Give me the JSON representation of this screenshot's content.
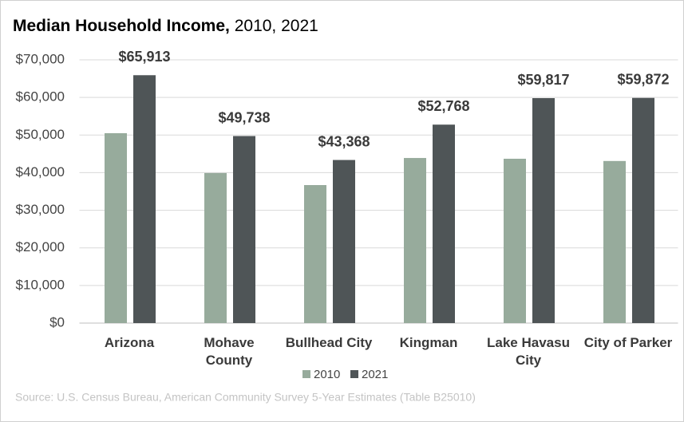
{
  "chart_data": {
    "type": "bar",
    "title": "Median Household Income,",
    "title_years": "2010, 2021",
    "categories": [
      "Arizona",
      "Mohave County",
      "Bullhead City",
      "Kingman",
      "Lake Havasu City",
      "City of Parker"
    ],
    "series": [
      {
        "name": "2010",
        "color": "#97ab9c",
        "values": [
          50500,
          39900,
          36700,
          43900,
          43700,
          43100
        ]
      },
      {
        "name": "2021",
        "color": "#4f5557",
        "values": [
          65913,
          49738,
          43368,
          52768,
          59817,
          59872
        ],
        "value_labels": [
          "$65,913",
          "$49,738",
          "$43,368",
          "$52,768",
          "$59,817",
          "$59,872"
        ]
      }
    ],
    "ylim": [
      0,
      70000
    ],
    "yticks": [
      {
        "value": 0,
        "label": "$0"
      },
      {
        "value": 10000,
        "label": "$10,000"
      },
      {
        "value": 20000,
        "label": "$20,000"
      },
      {
        "value": 30000,
        "label": "$30,000"
      },
      {
        "value": 40000,
        "label": "$40,000"
      },
      {
        "value": 50000,
        "label": "$50,000"
      },
      {
        "value": 60000,
        "label": "$60,000"
      },
      {
        "value": 70000,
        "label": "$70,000"
      }
    ],
    "grid": true,
    "legend": "bottom",
    "source": "Source: U.S. Census Bureau, American Community Survey 5-Year Estimates (Table B25010)"
  }
}
